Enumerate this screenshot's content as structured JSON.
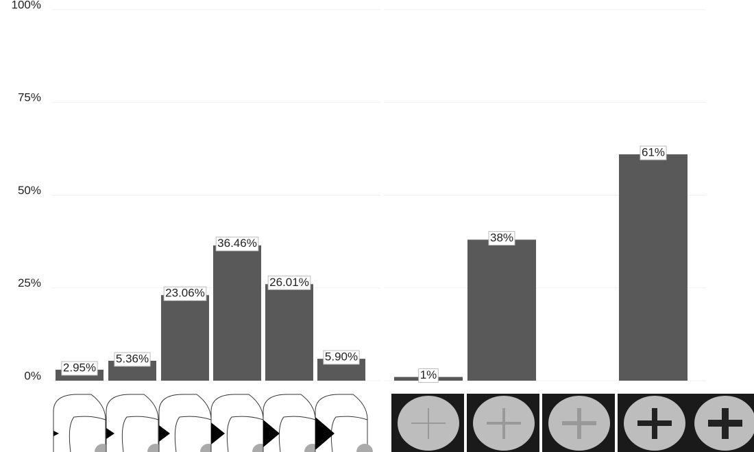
{
  "chart_data": [
    {
      "type": "bar",
      "categories": [
        null,
        null,
        null,
        null,
        null,
        null
      ],
      "values": [
        2.95,
        5.36,
        23.06,
        36.46,
        26.01,
        5.9
      ],
      "value_labels": [
        "2.95%",
        "5.36%",
        "23.06%",
        "36.46%",
        "26.01%",
        "5.90%"
      ],
      "color": "#595959",
      "ylim": [
        0,
        100
      ],
      "yticks": [
        {
          "value": 0,
          "label": "0%"
        },
        {
          "value": 25,
          "label": "25%"
        },
        {
          "value": 50,
          "label": "50%"
        },
        {
          "value": 75,
          "label": "75%"
        },
        {
          "value": 100,
          "label": "100%"
        }
      ],
      "grid": true
    },
    {
      "type": "bar",
      "categories": [
        null,
        null,
        null
      ],
      "values": [
        1,
        38,
        61
      ],
      "value_labels": [
        "1%",
        "38%",
        "61%"
      ],
      "color": "#595959",
      "ylim": [
        0,
        100
      ],
      "grid": true
    }
  ]
}
